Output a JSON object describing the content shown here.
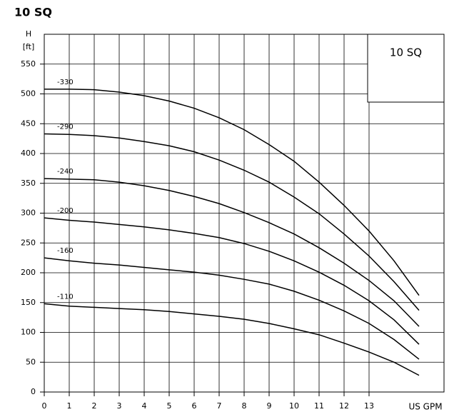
{
  "chart_data": {
    "type": "line",
    "title": "10 SQ",
    "box_label": "10 SQ",
    "y_label_top": "H",
    "y_label_unit": "[ft]",
    "x_label": "US GPM",
    "x": [
      0,
      1,
      2,
      3,
      4,
      5,
      6,
      7,
      8,
      9,
      10,
      11,
      12,
      13,
      14,
      15
    ],
    "series": [
      {
        "name": "-330",
        "color": "#000000",
        "values": [
          508,
          508,
          507,
          503,
          497,
          488,
          476,
          460,
          440,
          415,
          387,
          352,
          313,
          270,
          220,
          162
        ]
      },
      {
        "name": "-290",
        "color": "#000000",
        "values": [
          433,
          432,
          430,
          426,
          420,
          413,
          403,
          389,
          372,
          352,
          327,
          299,
          265,
          228,
          185,
          137
        ]
      },
      {
        "name": "-240",
        "color": "#000000",
        "values": [
          358,
          357,
          356,
          352,
          346,
          338,
          328,
          316,
          301,
          284,
          265,
          242,
          216,
          187,
          153,
          110
        ]
      },
      {
        "name": "-200",
        "color": "#000000",
        "values": [
          292,
          288,
          285,
          281,
          277,
          272,
          266,
          259,
          249,
          236,
          220,
          201,
          179,
          153,
          121,
          80
        ]
      },
      {
        "name": "-160",
        "color": "#000000",
        "values": [
          225,
          220,
          216,
          213,
          209,
          205,
          201,
          196,
          189,
          181,
          169,
          154,
          136,
          115,
          88,
          55
        ]
      },
      {
        "name": "-110",
        "color": "#000000",
        "values": [
          148,
          144,
          142,
          140,
          138,
          135,
          131,
          127,
          122,
          115,
          106,
          96,
          82,
          67,
          50,
          28
        ]
      }
    ],
    "xlim": [
      0,
      16
    ],
    "xticks": [
      0,
      1,
      2,
      3,
      4,
      5,
      6,
      7,
      8,
      9,
      10,
      11,
      12,
      13
    ],
    "ylim": [
      0,
      600
    ],
    "yticks": [
      0,
      50,
      100,
      150,
      200,
      250,
      300,
      350,
      400,
      450,
      500,
      550
    ],
    "grid": true
  }
}
